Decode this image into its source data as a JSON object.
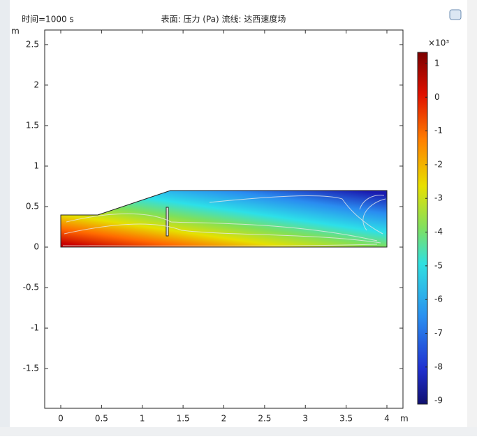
{
  "chart_data": {
    "type": "surface",
    "header": "时间=1000 s",
    "title": "表面: 压力 (Pa)  流线: 达西速度场",
    "xlabel": "m",
    "ylabel": "m",
    "xlim": [
      -0.197,
      4.197
    ],
    "xticks": [
      0,
      0.5,
      1,
      1.5,
      2,
      2.5,
      3,
      3.5,
      4
    ],
    "ylim": [
      -1.99,
      2.68
    ],
    "yticks": [
      -1.5,
      -1,
      -0.5,
      0,
      0.5,
      1,
      1.5,
      2,
      2.5
    ],
    "colorbar": {
      "label": "×10³",
      "lim": [
        -9.1,
        1.33
      ],
      "ticks": [
        1,
        0,
        -1,
        -2,
        -3,
        -4,
        -5,
        -6,
        -7,
        -8,
        -9
      ]
    }
  }
}
